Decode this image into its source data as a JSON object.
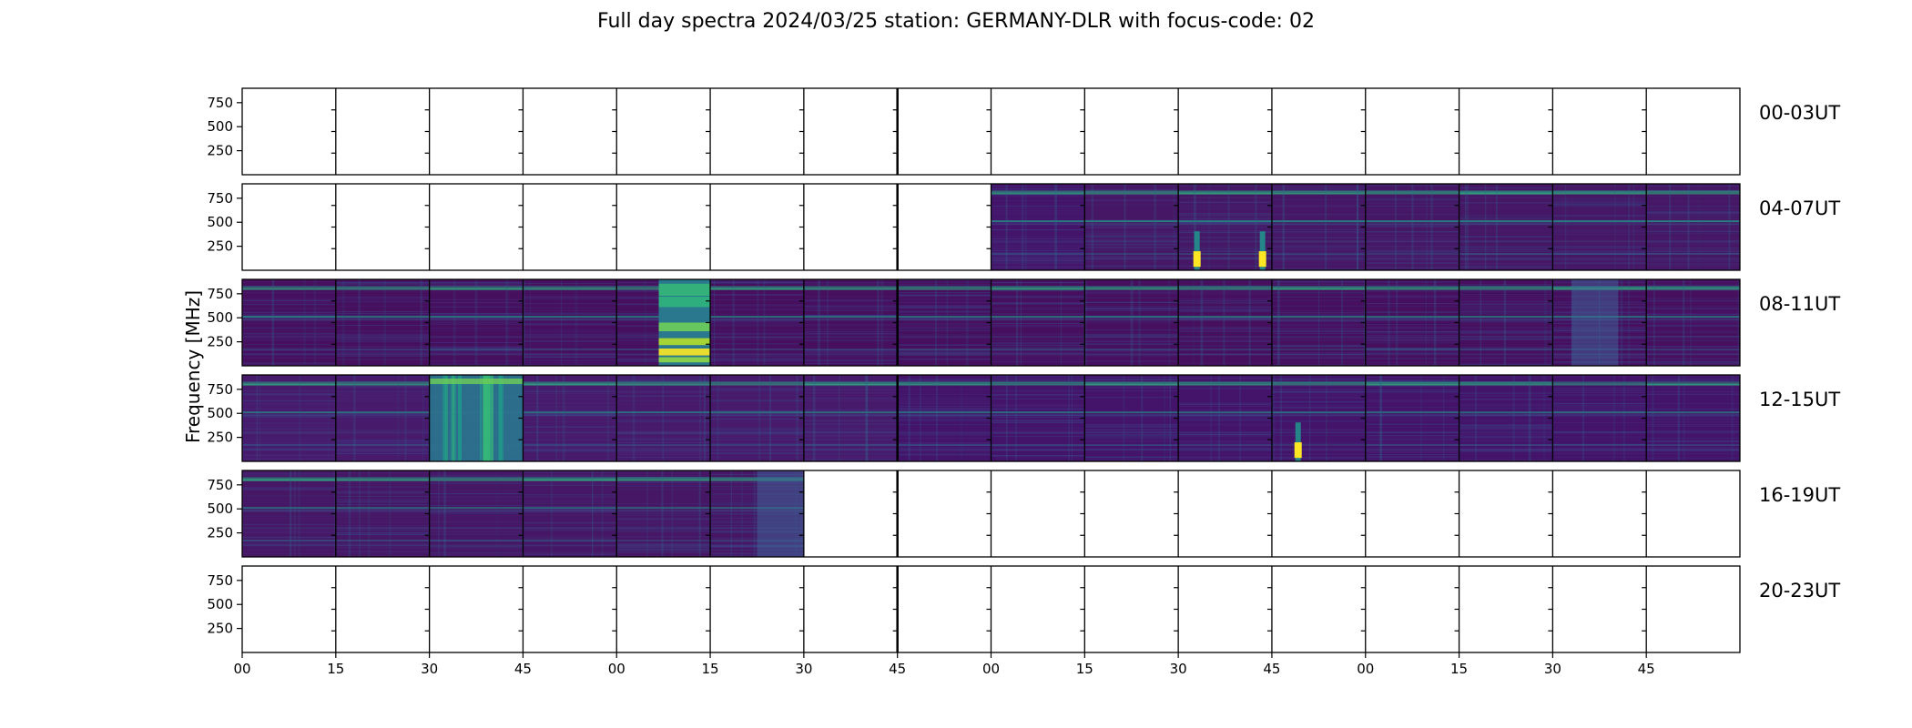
{
  "chart_data": {
    "type": "heatmap",
    "title": "Full day spectra 2024/03/25 station: GERMANY-DLR with focus-code: 02",
    "ylabel": "Frequency [MHz]",
    "xlabel": "",
    "yticks": [
      250,
      500,
      750
    ],
    "ylim": [
      0,
      900
    ],
    "xticks": [
      "00",
      "15",
      "30",
      "45",
      "00",
      "15",
      "30",
      "45",
      "00",
      "15",
      "30",
      "45",
      "00",
      "15",
      "30",
      "45"
    ],
    "panels_per_row": 16,
    "colormap": "viridis",
    "colors": {
      "background": "#46105f",
      "band": "#2a8c8a",
      "bright": "#fde725",
      "bright2": "#8fd744"
    },
    "rows": [
      {
        "label": "00-03UT",
        "panels": [
          0,
          0,
          0,
          0,
          0,
          0,
          0,
          0,
          0,
          0,
          0,
          0,
          0,
          0,
          0,
          0
        ],
        "bursts": []
      },
      {
        "label": "04-07UT",
        "panels": [
          0,
          0,
          0,
          0,
          0,
          0,
          0,
          0,
          1,
          1,
          1,
          1,
          1,
          1,
          1,
          1
        ],
        "bursts": [
          {
            "panel": 10,
            "pos": 0.2,
            "kind": "spike"
          },
          {
            "panel": 10,
            "pos": 0.9,
            "kind": "spike"
          }
        ]
      },
      {
        "label": "08-11UT",
        "panels": [
          1,
          1,
          1,
          1,
          1,
          1,
          1,
          1,
          1,
          1,
          1,
          1,
          1,
          1,
          1,
          1
        ],
        "bursts": [
          {
            "panel": 4,
            "pos": 0.45,
            "kind": "wide"
          },
          {
            "panel": 14,
            "pos": 0.5,
            "kind": "haze"
          }
        ]
      },
      {
        "label": "12-15UT",
        "panels": [
          1,
          1,
          1,
          1,
          1,
          1,
          1,
          1,
          1,
          1,
          1,
          1,
          1,
          1,
          1,
          1
        ],
        "bursts": [
          {
            "panel": 2,
            "pos": 0.0,
            "kind": "wide-full"
          },
          {
            "panel": 11,
            "pos": 0.28,
            "kind": "spike"
          }
        ]
      },
      {
        "label": "16-19UT",
        "panels": [
          1,
          1,
          1,
          1,
          1,
          1,
          0,
          0,
          0,
          0,
          0,
          0,
          0,
          0,
          0,
          0
        ],
        "bursts": [
          {
            "panel": 5,
            "pos": 0.8,
            "kind": "haze"
          }
        ]
      },
      {
        "label": "20-23UT",
        "panels": [
          0,
          0,
          0,
          0,
          0,
          0,
          0,
          0,
          0,
          0,
          0,
          0,
          0,
          0,
          0,
          0
        ],
        "bursts": []
      }
    ]
  }
}
